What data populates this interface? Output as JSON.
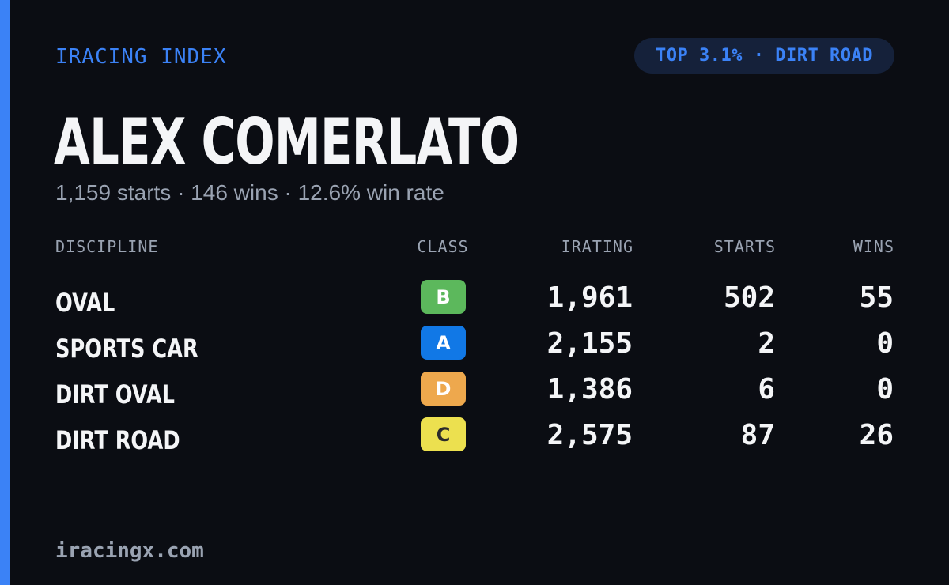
{
  "brand": "IRACING INDEX",
  "badge": "TOP 3.1% · DIRT ROAD",
  "driver": {
    "name": "ALEX COMERLATO",
    "summary": "1,159 starts · 146 wins · 12.6% win rate"
  },
  "table": {
    "headers": {
      "discipline": "DISCIPLINE",
      "class": "CLASS",
      "irating": "IRATING",
      "starts": "STARTS",
      "wins": "WINS"
    },
    "rows": [
      {
        "discipline": "OVAL",
        "class": "B",
        "class_color": "#5cb85c",
        "class_text_color": "#ffffff",
        "irating": "1,961",
        "starts": "502",
        "wins": "55"
      },
      {
        "discipline": "SPORTS CAR",
        "class": "A",
        "class_color": "#1178e6",
        "class_text_color": "#ffffff",
        "irating": "2,155",
        "starts": "2",
        "wins": "0"
      },
      {
        "discipline": "DIRT OVAL",
        "class": "D",
        "class_color": "#eea84d",
        "class_text_color": "#ffffff",
        "irating": "1,386",
        "starts": "6",
        "wins": "0"
      },
      {
        "discipline": "DIRT ROAD",
        "class": "C",
        "class_color": "#ece04f",
        "class_text_color": "#2b2b2b",
        "irating": "2,575",
        "starts": "87",
        "wins": "26"
      }
    ]
  },
  "footer": "iracingx.com",
  "colors": {
    "accent": "#3b82f6",
    "background": "#0b0d13",
    "muted_text": "#9aa3b2"
  }
}
